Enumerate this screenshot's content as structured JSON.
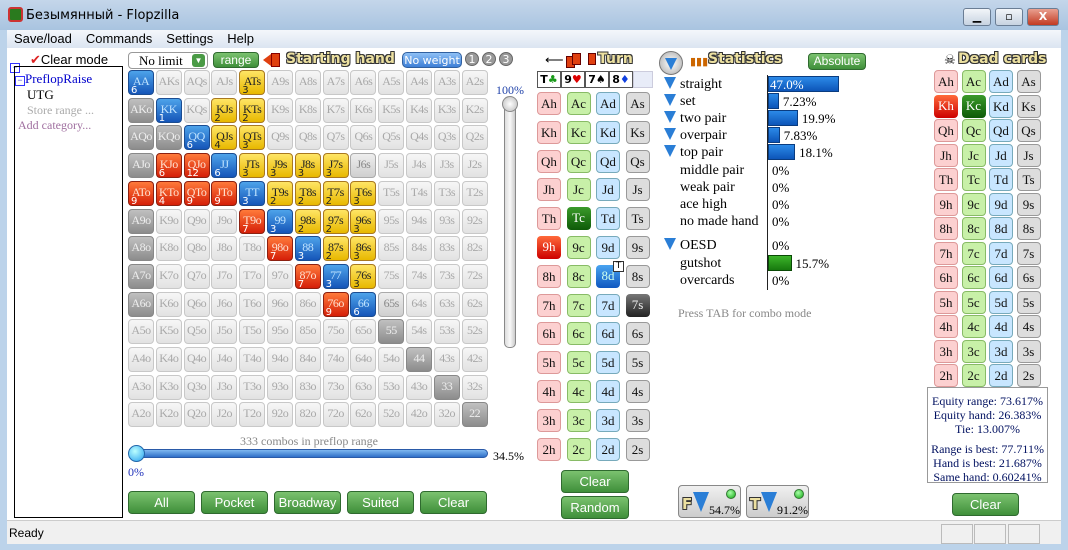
{
  "window": {
    "title": "Безымянный - Flopzilla",
    "minimize": "▁",
    "maximize": "▫",
    "close": "X"
  },
  "menu": [
    "Save/load",
    "Commands",
    "Settings",
    "Help"
  ],
  "tree": {
    "clear_mode": "Clear mode",
    "root": "PreflopRaise",
    "child": "UTG",
    "store": "Store range ...",
    "add": "Add category..."
  },
  "range_bar": {
    "limit": "No limit",
    "range_btn": "range",
    "starting_hand": "Starting hand",
    "no_weight": "No weight",
    "weights": [
      "1",
      "2",
      "3"
    ],
    "top_pct": "100%"
  },
  "grid": [
    [
      [
        "AA",
        "b",
        "6"
      ],
      [
        "AKs",
        "n",
        ""
      ],
      [
        "AQs",
        "n",
        ""
      ],
      [
        "AJs",
        "n",
        ""
      ],
      [
        "ATs",
        "y",
        "3"
      ],
      [
        "A9s",
        "n",
        ""
      ],
      [
        "A8s",
        "n",
        ""
      ],
      [
        "A7s",
        "n",
        ""
      ],
      [
        "A6s",
        "n",
        ""
      ],
      [
        "A5s",
        "n",
        ""
      ],
      [
        "A4s",
        "n",
        ""
      ],
      [
        "A3s",
        "n",
        ""
      ],
      [
        "A2s",
        "n",
        ""
      ]
    ],
    [
      [
        "AKo",
        "d",
        ""
      ],
      [
        "KK",
        "b",
        "1"
      ],
      [
        "KQs",
        "n",
        ""
      ],
      [
        "KJs",
        "y",
        "2"
      ],
      [
        "KTs",
        "y",
        "2"
      ],
      [
        "K9s",
        "n",
        ""
      ],
      [
        "K8s",
        "n",
        ""
      ],
      [
        "K7s",
        "n",
        ""
      ],
      [
        "K6s",
        "n",
        ""
      ],
      [
        "K5s",
        "n",
        ""
      ],
      [
        "K4s",
        "n",
        ""
      ],
      [
        "K3s",
        "n",
        ""
      ],
      [
        "K2s",
        "n",
        ""
      ]
    ],
    [
      [
        "AQo",
        "d",
        ""
      ],
      [
        "KQo",
        "d",
        ""
      ],
      [
        "QQ",
        "b",
        "6"
      ],
      [
        "QJs",
        "y",
        "4"
      ],
      [
        "QTs",
        "y",
        "3"
      ],
      [
        "Q9s",
        "n",
        ""
      ],
      [
        "Q8s",
        "n",
        ""
      ],
      [
        "Q7s",
        "n",
        ""
      ],
      [
        "Q6s",
        "n",
        ""
      ],
      [
        "Q5s",
        "n",
        ""
      ],
      [
        "Q4s",
        "n",
        ""
      ],
      [
        "Q3s",
        "n",
        ""
      ],
      [
        "Q2s",
        "n",
        ""
      ]
    ],
    [
      [
        "AJo",
        "d",
        ""
      ],
      [
        "KJo",
        "r",
        "6"
      ],
      [
        "QJo",
        "r",
        "12"
      ],
      [
        "JJ",
        "b",
        "6"
      ],
      [
        "JTs",
        "y",
        "3"
      ],
      [
        "J9s",
        "y",
        "3"
      ],
      [
        "J8s",
        "y",
        "3"
      ],
      [
        "J7s",
        "y",
        "3"
      ],
      [
        "J6s",
        "m",
        ""
      ],
      [
        "J5s",
        "n",
        ""
      ],
      [
        "J4s",
        "n",
        ""
      ],
      [
        "J3s",
        "n",
        ""
      ],
      [
        "J2s",
        "n",
        ""
      ]
    ],
    [
      [
        "ATo",
        "r",
        "9"
      ],
      [
        "KTo",
        "r",
        "4"
      ],
      [
        "QTo",
        "r",
        "9"
      ],
      [
        "JTo",
        "r",
        "9"
      ],
      [
        "TT",
        "b",
        "3"
      ],
      [
        "T9s",
        "y",
        "2"
      ],
      [
        "T8s",
        "y",
        "2"
      ],
      [
        "T7s",
        "y",
        "2"
      ],
      [
        "T6s",
        "y",
        "3"
      ],
      [
        "T5s",
        "n",
        ""
      ],
      [
        "T4s",
        "n",
        ""
      ],
      [
        "T3s",
        "n",
        ""
      ],
      [
        "T2s",
        "n",
        ""
      ]
    ],
    [
      [
        "A9o",
        "d",
        ""
      ],
      [
        "K9o",
        "n",
        ""
      ],
      [
        "Q9o",
        "n",
        ""
      ],
      [
        "J9o",
        "n",
        ""
      ],
      [
        "T9o",
        "r",
        "7"
      ],
      [
        "99",
        "b",
        "3"
      ],
      [
        "98s",
        "y",
        "2"
      ],
      [
        "97s",
        "y",
        "2"
      ],
      [
        "96s",
        "y",
        "3"
      ],
      [
        "95s",
        "n",
        ""
      ],
      [
        "94s",
        "n",
        ""
      ],
      [
        "93s",
        "n",
        ""
      ],
      [
        "92s",
        "n",
        ""
      ]
    ],
    [
      [
        "A8o",
        "d",
        ""
      ],
      [
        "K8o",
        "n",
        ""
      ],
      [
        "Q8o",
        "n",
        ""
      ],
      [
        "J8o",
        "n",
        ""
      ],
      [
        "T8o",
        "n",
        ""
      ],
      [
        "98o",
        "r",
        "7"
      ],
      [
        "88",
        "b",
        "3"
      ],
      [
        "87s",
        "y",
        "2"
      ],
      [
        "86s",
        "y",
        "3"
      ],
      [
        "85s",
        "n",
        ""
      ],
      [
        "84s",
        "n",
        ""
      ],
      [
        "83s",
        "n",
        ""
      ],
      [
        "82s",
        "n",
        ""
      ]
    ],
    [
      [
        "A7o",
        "d",
        ""
      ],
      [
        "K7o",
        "n",
        ""
      ],
      [
        "Q7o",
        "n",
        ""
      ],
      [
        "J7o",
        "n",
        ""
      ],
      [
        "T7o",
        "n",
        ""
      ],
      [
        "97o",
        "n",
        ""
      ],
      [
        "87o",
        "r",
        "7"
      ],
      [
        "77",
        "b",
        "3"
      ],
      [
        "76s",
        "y",
        "3"
      ],
      [
        "75s",
        "n",
        ""
      ],
      [
        "74s",
        "n",
        ""
      ],
      [
        "73s",
        "n",
        ""
      ],
      [
        "72s",
        "n",
        ""
      ]
    ],
    [
      [
        "A6o",
        "d",
        ""
      ],
      [
        "K6o",
        "n",
        ""
      ],
      [
        "Q6o",
        "n",
        ""
      ],
      [
        "J6o",
        "n",
        ""
      ],
      [
        "T6o",
        "n",
        ""
      ],
      [
        "96o",
        "n",
        ""
      ],
      [
        "86o",
        "n",
        ""
      ],
      [
        "76o",
        "r",
        "9"
      ],
      [
        "66",
        "b",
        "6"
      ],
      [
        "65s",
        "m",
        ""
      ],
      [
        "64s",
        "n",
        ""
      ],
      [
        "63s",
        "n",
        ""
      ],
      [
        "62s",
        "n",
        ""
      ]
    ],
    [
      [
        "A5o",
        "n",
        ""
      ],
      [
        "K5o",
        "n",
        ""
      ],
      [
        "Q5o",
        "n",
        ""
      ],
      [
        "J5o",
        "n",
        ""
      ],
      [
        "T5o",
        "n",
        ""
      ],
      [
        "95o",
        "n",
        ""
      ],
      [
        "85o",
        "n",
        ""
      ],
      [
        "75o",
        "n",
        ""
      ],
      [
        "65o",
        "n",
        ""
      ],
      [
        "55",
        "d",
        ""
      ],
      [
        "54s",
        "n",
        ""
      ],
      [
        "53s",
        "n",
        ""
      ],
      [
        "52s",
        "n",
        ""
      ]
    ],
    [
      [
        "A4o",
        "n",
        ""
      ],
      [
        "K4o",
        "n",
        ""
      ],
      [
        "Q4o",
        "n",
        ""
      ],
      [
        "J4o",
        "n",
        ""
      ],
      [
        "T4o",
        "n",
        ""
      ],
      [
        "94o",
        "n",
        ""
      ],
      [
        "84o",
        "n",
        ""
      ],
      [
        "74o",
        "n",
        ""
      ],
      [
        "64o",
        "n",
        ""
      ],
      [
        "54o",
        "n",
        ""
      ],
      [
        "44",
        "d",
        ""
      ],
      [
        "43s",
        "n",
        ""
      ],
      [
        "42s",
        "n",
        ""
      ]
    ],
    [
      [
        "A3o",
        "n",
        ""
      ],
      [
        "K3o",
        "n",
        ""
      ],
      [
        "Q3o",
        "n",
        ""
      ],
      [
        "J3o",
        "n",
        ""
      ],
      [
        "T3o",
        "n",
        ""
      ],
      [
        "93o",
        "n",
        ""
      ],
      [
        "83o",
        "n",
        ""
      ],
      [
        "73o",
        "n",
        ""
      ],
      [
        "63o",
        "n",
        ""
      ],
      [
        "53o",
        "n",
        ""
      ],
      [
        "43o",
        "n",
        ""
      ],
      [
        "33",
        "d",
        ""
      ],
      [
        "32s",
        "n",
        ""
      ]
    ],
    [
      [
        "A2o",
        "n",
        ""
      ],
      [
        "K2o",
        "n",
        ""
      ],
      [
        "Q2o",
        "n",
        ""
      ],
      [
        "J2o",
        "n",
        ""
      ],
      [
        "T2o",
        "n",
        ""
      ],
      [
        "92o",
        "n",
        ""
      ],
      [
        "82o",
        "n",
        ""
      ],
      [
        "72o",
        "n",
        ""
      ],
      [
        "62o",
        "n",
        ""
      ],
      [
        "52o",
        "n",
        ""
      ],
      [
        "42o",
        "n",
        ""
      ],
      [
        "32o",
        "n",
        ""
      ],
      [
        "22",
        "d",
        ""
      ]
    ]
  ],
  "combos_text": "333 combos in preflop range",
  "slider": {
    "min_label": "0%",
    "value_label": "34.5%",
    "value": 34.5
  },
  "grid_buttons": [
    "All",
    "Pocket",
    "Broadway",
    "Suited",
    "Clear"
  ],
  "turn": {
    "title": "Turn",
    "board": [
      {
        "r": "T",
        "s": "♣",
        "c": "#1a9a1a"
      },
      {
        "r": "9",
        "s": "♥",
        "c": "#d00"
      },
      {
        "r": "7",
        "s": "♠",
        "c": "#000"
      },
      {
        "r": "8",
        "s": "♦",
        "c": "#1040e0"
      }
    ],
    "selected": {
      "Tc": "selg",
      "9h": "selr",
      "8d": "selb",
      "7s": "selk"
    },
    "marker_card": "8d",
    "marker": "T",
    "clear": "Clear",
    "random": "Random"
  },
  "ranks": [
    "A",
    "K",
    "Q",
    "J",
    "T",
    "9",
    "8",
    "7",
    "6",
    "5",
    "4",
    "3",
    "2"
  ],
  "suits": [
    "h",
    "c",
    "d",
    "s"
  ],
  "stats": {
    "title": "Statistics",
    "mode_btn": "Absolute",
    "rows": [
      {
        "label": "straight",
        "pct": "47.0%",
        "v": 47.0,
        "f": true
      },
      {
        "label": "set",
        "pct": "7.23%",
        "v": 7.23,
        "f": true
      },
      {
        "label": "two pair",
        "pct": "19.9%",
        "v": 19.9,
        "f": true
      },
      {
        "label": "overpair",
        "pct": "7.83%",
        "v": 7.83,
        "f": true
      },
      {
        "label": "top pair",
        "pct": "18.1%",
        "v": 18.1,
        "f": true
      },
      {
        "label": "middle pair",
        "pct": "0%",
        "v": 0,
        "f": false
      },
      {
        "label": "weak pair",
        "pct": "0%",
        "v": 0,
        "f": false
      },
      {
        "label": "ace high",
        "pct": "0%",
        "v": 0,
        "f": false
      },
      {
        "label": "no made hand",
        "pct": "0%",
        "v": 0,
        "f": false
      }
    ],
    "draws": [
      {
        "label": "OESD",
        "pct": "0%",
        "v": 0,
        "f": true
      },
      {
        "label": "gutshot",
        "pct": "15.7%",
        "v": 15.7,
        "f": false,
        "green": true
      },
      {
        "label": "overcards",
        "pct": "0%",
        "v": 0,
        "f": false
      }
    ],
    "hint": "Press TAB for combo mode",
    "filters": [
      {
        "letter": "F",
        "pct": "54.7%"
      },
      {
        "letter": "T",
        "pct": "91.2%"
      }
    ]
  },
  "dead": {
    "title": "Dead cards",
    "selected": {
      "Kh": "selr",
      "Kc": "selg"
    },
    "clear": "Clear",
    "equity": [
      "Equity range: 73.617%",
      "Equity hand: 26.383%",
      "Tie: 13.007%"
    ],
    "best": [
      "Range is best: 77.711%",
      "Hand is best: 21.687%",
      "Same hand: 0.60241%"
    ]
  },
  "statusbar": "Ready",
  "colors": {
    "accent_green": "#4f9f47",
    "bar_blue": "#1b6fd6",
    "pair": "#1e6fd0",
    "suited": "#f2c81a",
    "offsuit": "#e8400f"
  }
}
